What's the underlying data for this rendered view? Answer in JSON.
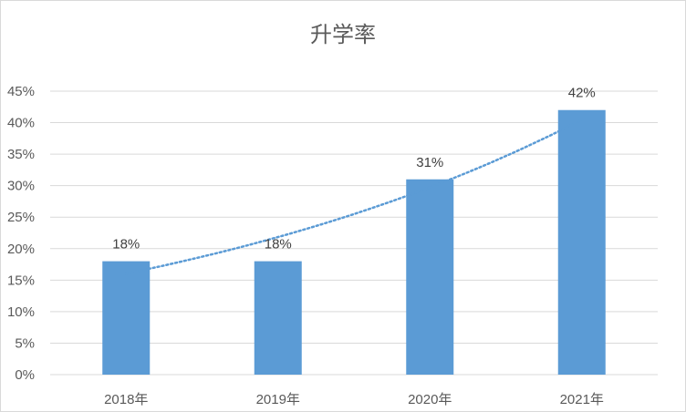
{
  "chart_data": {
    "type": "bar",
    "title": "升学率",
    "xlabel": "",
    "ylabel": "",
    "categories": [
      "2018年",
      "2019年",
      "2020年",
      "2021年"
    ],
    "values": [
      0.18,
      0.18,
      0.31,
      0.42
    ],
    "data_labels": [
      "18%",
      "18%",
      "31%",
      "42%"
    ],
    "ylim": [
      0,
      0.45
    ],
    "yticks": [
      0,
      0.05,
      0.1,
      0.15,
      0.2,
      0.25,
      0.3,
      0.35,
      0.4,
      0.45
    ],
    "ytick_labels": [
      "0%",
      "5%",
      "10%",
      "15%",
      "20%",
      "25%",
      "30%",
      "35%",
      "40%",
      "45%"
    ],
    "grid": true,
    "trendline": "dotted exponential",
    "colors": {
      "bar": "#5B9BD5",
      "trend": "#5B9BD5",
      "grid": "#d9d9d9",
      "text": "#595959"
    }
  }
}
